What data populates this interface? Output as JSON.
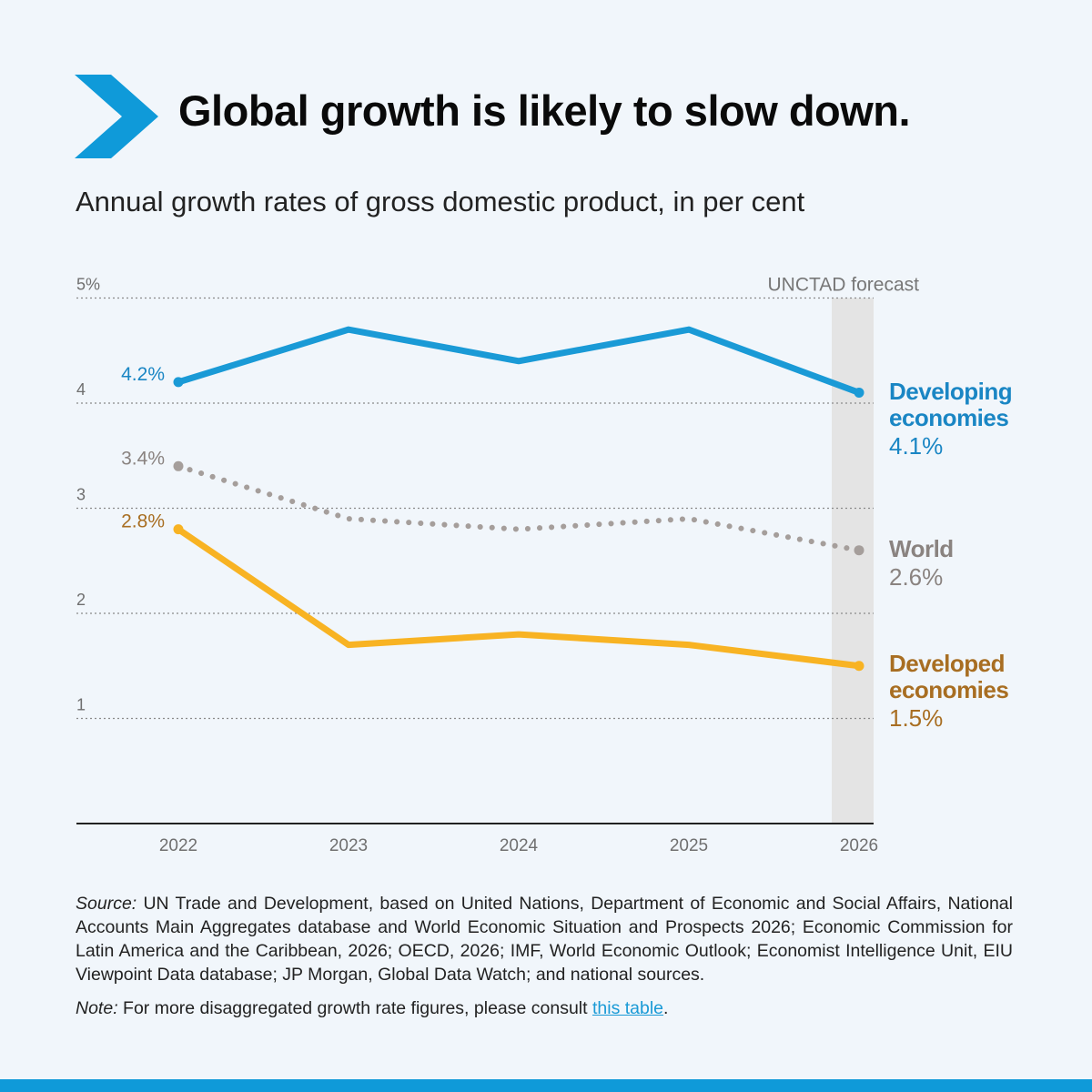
{
  "title": "Global growth is likely to slow down.",
  "subtitle": "Annual growth rates of gross domestic product, in per cent",
  "forecast_label": "UNCTAD forecast",
  "source_prefix": "Source:",
  "source_text": " UN Trade and Development, based on United Nations, Department of Economic and Social Affairs, National Accounts Main Aggregates database and World Economic Situation and Prospects 2026; Economic Commission for Latin America and the Caribbean, 2026; OECD, 2026; IMF, World Economic Outlook; Economist Intelligence Unit, EIU Viewpoint Data database; JP Morgan, Global Data Watch; and national sources.",
  "note_prefix": "Note:",
  "note_text": " For more disaggregated growth rate figures, please consult ",
  "note_link": "this table",
  "note_end": ".",
  "colors": {
    "background": "#f1f6fb",
    "accent": "#0f9ad9",
    "developing": "#1a9ad6",
    "world": "#a59e9b",
    "developed": "#f8b323",
    "forecast_band": "#e4e4e4"
  },
  "chart_data": {
    "type": "line",
    "x": [
      "2022",
      "2023",
      "2024",
      "2025",
      "2026"
    ],
    "y_ticks": [
      "1",
      "2",
      "3",
      "4",
      "5%"
    ],
    "y_tick_values": [
      1,
      2,
      3,
      4,
      5
    ],
    "ylim": [
      0,
      5
    ],
    "forecast_from": "2026",
    "series": [
      {
        "name": "Developing economies",
        "name_lines": [
          "Developing",
          "economies"
        ],
        "values": [
          4.2,
          4.7,
          4.4,
          4.7,
          4.1
        ],
        "start_label": "4.2%",
        "end_label": "4.1%",
        "style": "solid",
        "color": "#1a9ad6",
        "label_color": "#1a86c4"
      },
      {
        "name": "World",
        "name_lines": [
          "World"
        ],
        "values": [
          3.4,
          2.9,
          2.8,
          2.9,
          2.6
        ],
        "start_label": "3.4%",
        "end_label": "2.6%",
        "style": "dotted",
        "color": "#a59e9b",
        "label_color": "#8a8380"
      },
      {
        "name": "Developed economies",
        "name_lines": [
          "Developed",
          "economies"
        ],
        "values": [
          2.8,
          1.7,
          1.8,
          1.7,
          1.5
        ],
        "start_label": "2.8%",
        "end_label": "1.5%",
        "style": "solid",
        "color": "#f8b323",
        "label_color": "#a86e22"
      }
    ]
  }
}
